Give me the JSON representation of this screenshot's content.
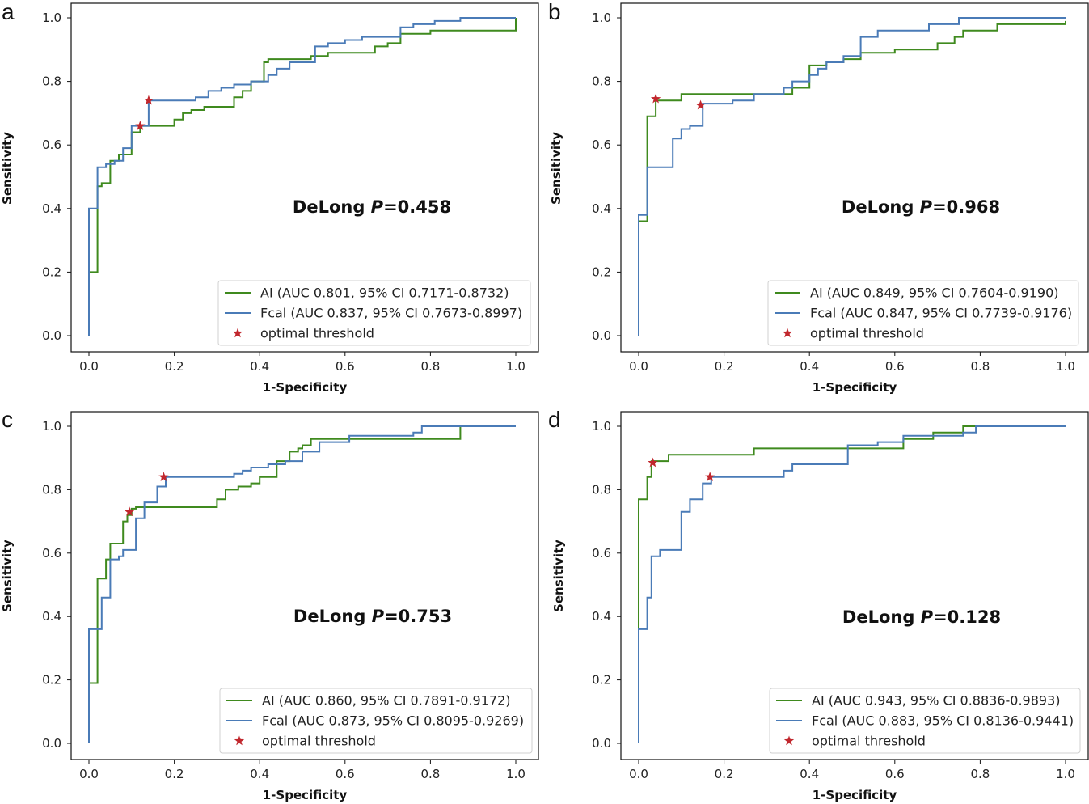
{
  "chart_data": [
    {
      "panel": "a",
      "type": "line",
      "xlabel": "1-Specificity",
      "ylabel": "Sensitivity",
      "xlim": [
        0,
        1
      ],
      "ylim": [
        0,
        1
      ],
      "xticks": [
        "0.0",
        "0.2",
        "0.4",
        "0.6",
        "0.8",
        "1.0"
      ],
      "yticks": [
        "0.0",
        "0.2",
        "0.4",
        "0.6",
        "0.8",
        "1.0"
      ],
      "annotation": {
        "prefix": "DeLong ",
        "p": "P",
        "value": "=0.458"
      },
      "legend_position": "lower-right",
      "threshold_label": "optimal threshold",
      "series": [
        {
          "name": "AI (AUC 0.801, 95% CI 0.7171-0.8732)",
          "color": "#3f8a1e",
          "x": [
            0,
            0,
            0.02,
            0.02,
            0.03,
            0.03,
            0.05,
            0.05,
            0.07,
            0.07,
            0.1,
            0.1,
            0.12,
            0.12,
            0.2,
            0.2,
            0.22,
            0.22,
            0.24,
            0.24,
            0.27,
            0.27,
            0.34,
            0.34,
            0.36,
            0.36,
            0.38,
            0.38,
            0.41,
            0.41,
            0.42,
            0.42,
            0.52,
            0.52,
            0.56,
            0.56,
            0.67,
            0.67,
            0.7,
            0.7,
            0.73,
            0.73,
            0.8,
            0.8,
            0.82,
            0.82,
            1.0,
            1.0
          ],
          "y": [
            0,
            0.2,
            0.2,
            0.47,
            0.47,
            0.48,
            0.48,
            0.55,
            0.55,
            0.57,
            0.57,
            0.64,
            0.64,
            0.66,
            0.66,
            0.68,
            0.68,
            0.7,
            0.7,
            0.71,
            0.71,
            0.72,
            0.72,
            0.75,
            0.75,
            0.77,
            0.77,
            0.8,
            0.8,
            0.86,
            0.86,
            0.87,
            0.87,
            0.88,
            0.88,
            0.89,
            0.89,
            0.91,
            0.91,
            0.92,
            0.92,
            0.95,
            0.95,
            0.96,
            0.96,
            0.96,
            0.96,
            1.0
          ],
          "threshold": [
            0.12,
            0.66
          ]
        },
        {
          "name": "Fcal (AUC 0.837, 95% CI 0.7673-0.8997)",
          "color": "#4a7bb7",
          "x": [
            0,
            0,
            0.02,
            0.02,
            0.04,
            0.04,
            0.06,
            0.06,
            0.08,
            0.08,
            0.1,
            0.1,
            0.14,
            0.14,
            0.25,
            0.25,
            0.28,
            0.28,
            0.31,
            0.31,
            0.34,
            0.34,
            0.38,
            0.38,
            0.4,
            0.4,
            0.42,
            0.42,
            0.44,
            0.44,
            0.47,
            0.47,
            0.53,
            0.53,
            0.56,
            0.56,
            0.6,
            0.6,
            0.64,
            0.64,
            0.73,
            0.73,
            0.76,
            0.76,
            0.81,
            0.81,
            0.87,
            0.87,
            1.0
          ],
          "y": [
            0,
            0.4,
            0.4,
            0.53,
            0.53,
            0.54,
            0.54,
            0.55,
            0.55,
            0.59,
            0.59,
            0.66,
            0.66,
            0.74,
            0.74,
            0.75,
            0.75,
            0.77,
            0.77,
            0.78,
            0.78,
            0.79,
            0.79,
            0.8,
            0.8,
            0.8,
            0.8,
            0.82,
            0.82,
            0.84,
            0.84,
            0.86,
            0.86,
            0.91,
            0.91,
            0.92,
            0.92,
            0.93,
            0.93,
            0.94,
            0.94,
            0.97,
            0.97,
            0.98,
            0.98,
            0.99,
            0.99,
            1.0,
            1.0
          ],
          "threshold": [
            0.14,
            0.74
          ]
        }
      ]
    },
    {
      "panel": "b",
      "type": "line",
      "xlabel": "1-Specificity",
      "ylabel": "Sensitivity",
      "xlim": [
        0,
        1
      ],
      "ylim": [
        0,
        1
      ],
      "xticks": [
        "0.0",
        "0.2",
        "0.4",
        "0.6",
        "0.8",
        "1.0"
      ],
      "yticks": [
        "0.0",
        "0.2",
        "0.4",
        "0.6",
        "0.8",
        "1.0"
      ],
      "annotation": {
        "prefix": "DeLong ",
        "p": "P",
        "value": "=0.968"
      },
      "legend_position": "lower-right",
      "threshold_label": "optimal threshold",
      "series": [
        {
          "name": "AI (AUC 0.849, 95% CI 0.7604-0.9190)",
          "color": "#3f8a1e",
          "x": [
            0,
            0,
            0.02,
            0.02,
            0.04,
            0.04,
            0.1,
            0.1,
            0.36,
            0.36,
            0.4,
            0.4,
            0.44,
            0.44,
            0.48,
            0.48,
            0.52,
            0.52,
            0.6,
            0.6,
            0.7,
            0.7,
            0.74,
            0.74,
            0.76,
            0.76,
            0.84,
            0.84,
            1.0,
            1.0
          ],
          "y": [
            0,
            0.36,
            0.36,
            0.69,
            0.69,
            0.74,
            0.74,
            0.76,
            0.76,
            0.78,
            0.78,
            0.85,
            0.85,
            0.86,
            0.86,
            0.87,
            0.87,
            0.89,
            0.89,
            0.9,
            0.9,
            0.92,
            0.92,
            0.94,
            0.94,
            0.96,
            0.96,
            0.98,
            0.98,
            0.99
          ],
          "threshold": [
            0.04,
            0.745
          ]
        },
        {
          "name": "Fcal (AUC 0.847, 95% CI 0.7739-0.9176)",
          "color": "#4a7bb7",
          "x": [
            0,
            0,
            0.02,
            0.02,
            0.08,
            0.08,
            0.1,
            0.1,
            0.12,
            0.12,
            0.15,
            0.15,
            0.22,
            0.22,
            0.27,
            0.27,
            0.34,
            0.34,
            0.36,
            0.36,
            0.4,
            0.4,
            0.42,
            0.42,
            0.44,
            0.44,
            0.48,
            0.48,
            0.52,
            0.52,
            0.56,
            0.56,
            0.61,
            0.61,
            0.68,
            0.68,
            0.75,
            0.75,
            0.8,
            0.8,
            1.0
          ],
          "y": [
            0,
            0.38,
            0.38,
            0.53,
            0.53,
            0.62,
            0.62,
            0.65,
            0.65,
            0.66,
            0.66,
            0.73,
            0.73,
            0.74,
            0.74,
            0.76,
            0.76,
            0.78,
            0.78,
            0.8,
            0.8,
            0.82,
            0.82,
            0.84,
            0.84,
            0.86,
            0.86,
            0.88,
            0.88,
            0.94,
            0.94,
            0.96,
            0.96,
            0.96,
            0.96,
            0.98,
            0.98,
            1.0,
            1.0,
            1.0,
            1.0
          ],
          "threshold": [
            0.145,
            0.725
          ]
        }
      ]
    },
    {
      "panel": "c",
      "type": "line",
      "xlabel": "1-Specificity",
      "ylabel": "Sensitivity",
      "xlim": [
        0,
        1
      ],
      "ylim": [
        0,
        1
      ],
      "xticks": [
        "0.0",
        "0.2",
        "0.4",
        "0.6",
        "0.8",
        "1.0"
      ],
      "yticks": [
        "0.0",
        "0.2",
        "0.4",
        "0.6",
        "0.8",
        "1.0"
      ],
      "annotation": {
        "prefix": "DeLong ",
        "p": "P",
        "value": "=0.753"
      },
      "legend_position": "lower-right",
      "threshold_label": "optimal threshold",
      "series": [
        {
          "name": "AI (AUC 0.860, 95% CI 0.7891-0.9172)",
          "color": "#3f8a1e",
          "x": [
            0,
            0,
            0.02,
            0.02,
            0.04,
            0.04,
            0.05,
            0.05,
            0.08,
            0.08,
            0.09,
            0.09,
            0.1,
            0.1,
            0.11,
            0.11,
            0.13,
            0.13,
            0.3,
            0.3,
            0.32,
            0.32,
            0.35,
            0.35,
            0.38,
            0.38,
            0.4,
            0.4,
            0.44,
            0.44,
            0.47,
            0.47,
            0.49,
            0.49,
            0.5,
            0.5,
            0.52,
            0.52,
            0.6,
            0.6,
            0.87,
            0.87,
            1.0
          ],
          "y": [
            0,
            0.19,
            0.19,
            0.52,
            0.52,
            0.58,
            0.58,
            0.63,
            0.63,
            0.7,
            0.7,
            0.72,
            0.72,
            0.74,
            0.74,
            0.745,
            0.745,
            0.745,
            0.745,
            0.77,
            0.77,
            0.8,
            0.8,
            0.81,
            0.81,
            0.82,
            0.82,
            0.84,
            0.84,
            0.89,
            0.89,
            0.92,
            0.92,
            0.93,
            0.93,
            0.94,
            0.94,
            0.96,
            0.96,
            0.96,
            0.96,
            1.0,
            1.0
          ],
          "threshold": [
            0.095,
            0.73
          ]
        },
        {
          "name": "Fcal (AUC 0.873, 95% CI 0.8095-0.9269)",
          "color": "#4a7bb7",
          "x": [
            0,
            0,
            0.03,
            0.03,
            0.05,
            0.05,
            0.07,
            0.07,
            0.08,
            0.08,
            0.11,
            0.11,
            0.13,
            0.13,
            0.16,
            0.16,
            0.18,
            0.18,
            0.34,
            0.34,
            0.36,
            0.36,
            0.38,
            0.38,
            0.42,
            0.42,
            0.46,
            0.46,
            0.5,
            0.5,
            0.54,
            0.54,
            0.61,
            0.61,
            0.76,
            0.76,
            0.78,
            0.78,
            1.0
          ],
          "y": [
            0,
            0.36,
            0.36,
            0.46,
            0.46,
            0.58,
            0.58,
            0.59,
            0.59,
            0.61,
            0.61,
            0.71,
            0.71,
            0.76,
            0.76,
            0.81,
            0.81,
            0.84,
            0.84,
            0.85,
            0.85,
            0.86,
            0.86,
            0.87,
            0.87,
            0.88,
            0.88,
            0.89,
            0.89,
            0.92,
            0.92,
            0.95,
            0.95,
            0.97,
            0.97,
            0.98,
            0.98,
            1.0,
            1.0
          ],
          "threshold": [
            0.175,
            0.84
          ]
        }
      ]
    },
    {
      "panel": "d",
      "type": "line",
      "xlabel": "1-Specificity",
      "ylabel": "Sensitivity",
      "xlim": [
        0,
        1
      ],
      "ylim": [
        0,
        1
      ],
      "xticks": [
        "0.0",
        "0.2",
        "0.4",
        "0.6",
        "0.8",
        "1.0"
      ],
      "yticks": [
        "0.0",
        "0.2",
        "0.4",
        "0.6",
        "0.8",
        "1.0"
      ],
      "annotation": {
        "prefix": "DeLong ",
        "p": "P",
        "value": "=0.128"
      },
      "legend_position": "lower-right",
      "threshold_label": "optimal threshold",
      "series": [
        {
          "name": "AI (AUC 0.943, 95% CI 0.8836-0.9893)",
          "color": "#3f8a1e",
          "x": [
            0,
            0,
            0.02,
            0.02,
            0.03,
            0.03,
            0.07,
            0.07,
            0.27,
            0.27,
            0.57,
            0.57,
            0.62,
            0.62,
            0.69,
            0.69,
            0.76,
            0.76,
            0.8
          ],
          "y": [
            0,
            0.77,
            0.77,
            0.84,
            0.84,
            0.89,
            0.89,
            0.91,
            0.91,
            0.93,
            0.93,
            0.93,
            0.93,
            0.96,
            0.96,
            0.98,
            0.98,
            1.0,
            1.0
          ],
          "threshold": [
            0.033,
            0.885
          ]
        },
        {
          "name": "Fcal (AUC 0.883, 95% CI 0.8136-0.9441)",
          "color": "#4a7bb7",
          "x": [
            0,
            0,
            0.02,
            0.02,
            0.03,
            0.03,
            0.05,
            0.05,
            0.1,
            0.1,
            0.12,
            0.12,
            0.15,
            0.15,
            0.17,
            0.17,
            0.34,
            0.34,
            0.36,
            0.36,
            0.49,
            0.49,
            0.56,
            0.56,
            0.62,
            0.62,
            0.76,
            0.76,
            0.79,
            0.79,
            1.0
          ],
          "y": [
            0,
            0.36,
            0.36,
            0.46,
            0.46,
            0.59,
            0.59,
            0.61,
            0.61,
            0.73,
            0.73,
            0.77,
            0.77,
            0.82,
            0.82,
            0.84,
            0.84,
            0.86,
            0.86,
            0.88,
            0.88,
            0.94,
            0.94,
            0.95,
            0.95,
            0.97,
            0.97,
            0.98,
            0.98,
            1.0,
            1.0
          ],
          "threshold": [
            0.167,
            0.84
          ]
        }
      ]
    }
  ]
}
